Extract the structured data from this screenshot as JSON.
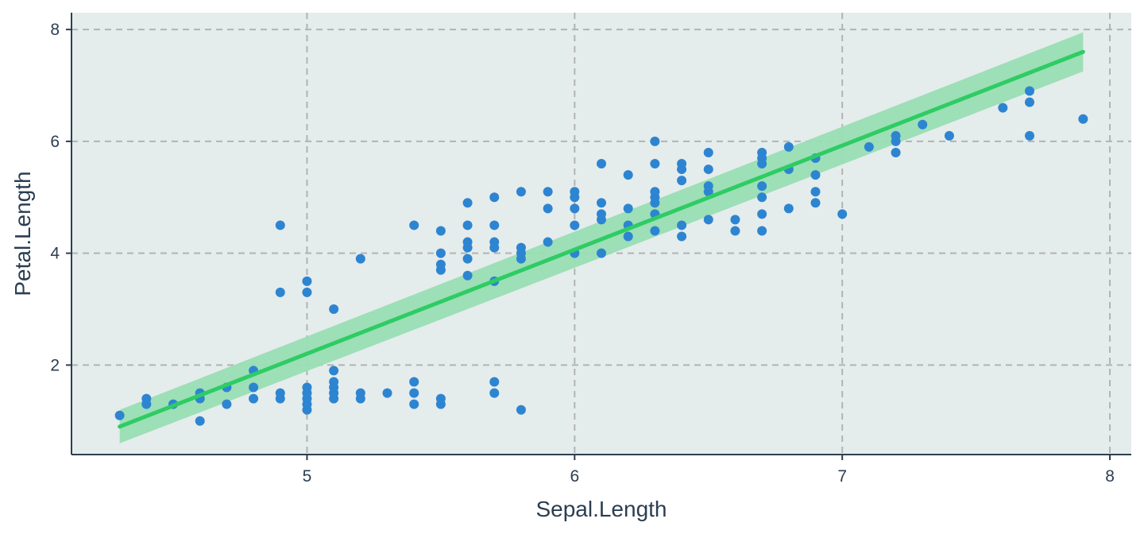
{
  "chart_data": {
    "type": "scatter",
    "title": "",
    "xlabel": "Sepal.Length",
    "ylabel": "Petal.Length",
    "xlim": [
      4.12,
      8.08
    ],
    "ylim": [
      0.4,
      8.3
    ],
    "xticks": [
      5,
      6,
      7,
      8
    ],
    "yticks": [
      2,
      4,
      6,
      8
    ],
    "xtick_labels": [
      "5",
      "6",
      "7",
      "8"
    ],
    "ytick_labels": [
      "2",
      "4",
      "6",
      "8"
    ],
    "grid": true,
    "legend": "none",
    "colors": {
      "panel_background": "#e5ecec",
      "points": "#2d85d1",
      "fit_line": "#2ecc64",
      "confidence_band": "#99deb4",
      "grid": "#b3b3b3",
      "axis": "#2c3e50"
    },
    "points": [
      [
        4.3,
        1.1
      ],
      [
        4.4,
        1.3
      ],
      [
        4.4,
        1.4
      ],
      [
        4.5,
        1.3
      ],
      [
        4.6,
        1.0
      ],
      [
        4.6,
        1.4
      ],
      [
        4.6,
        1.5
      ],
      [
        4.7,
        1.3
      ],
      [
        4.7,
        1.6
      ],
      [
        4.8,
        1.4
      ],
      [
        4.8,
        1.6
      ],
      [
        4.8,
        1.9
      ],
      [
        4.9,
        1.4
      ],
      [
        4.9,
        1.5
      ],
      [
        4.9,
        3.3
      ],
      [
        4.9,
        4.5
      ],
      [
        5.0,
        1.2
      ],
      [
        5.0,
        1.3
      ],
      [
        5.0,
        1.4
      ],
      [
        5.0,
        1.5
      ],
      [
        5.0,
        1.6
      ],
      [
        5.0,
        3.3
      ],
      [
        5.0,
        3.5
      ],
      [
        5.1,
        1.4
      ],
      [
        5.1,
        1.5
      ],
      [
        5.1,
        1.6
      ],
      [
        5.1,
        1.7
      ],
      [
        5.1,
        1.9
      ],
      [
        5.1,
        3.0
      ],
      [
        5.2,
        1.4
      ],
      [
        5.2,
        1.5
      ],
      [
        5.2,
        3.9
      ],
      [
        5.3,
        1.5
      ],
      [
        5.4,
        1.3
      ],
      [
        5.4,
        1.5
      ],
      [
        5.4,
        1.7
      ],
      [
        5.4,
        4.5
      ],
      [
        5.5,
        1.3
      ],
      [
        5.5,
        1.4
      ],
      [
        5.5,
        3.7
      ],
      [
        5.5,
        3.8
      ],
      [
        5.5,
        4.0
      ],
      [
        5.5,
        4.4
      ],
      [
        5.6,
        3.6
      ],
      [
        5.6,
        3.9
      ],
      [
        5.6,
        4.1
      ],
      [
        5.6,
        4.2
      ],
      [
        5.6,
        4.5
      ],
      [
        5.6,
        4.9
      ],
      [
        5.7,
        1.5
      ],
      [
        5.7,
        1.7
      ],
      [
        5.7,
        3.5
      ],
      [
        5.7,
        4.1
      ],
      [
        5.7,
        4.2
      ],
      [
        5.7,
        4.5
      ],
      [
        5.7,
        5.0
      ],
      [
        5.8,
        1.2
      ],
      [
        5.8,
        3.9
      ],
      [
        5.8,
        4.0
      ],
      [
        5.8,
        4.1
      ],
      [
        5.8,
        5.1
      ],
      [
        5.9,
        4.2
      ],
      [
        5.9,
        4.8
      ],
      [
        5.9,
        5.1
      ],
      [
        6.0,
        4.0
      ],
      [
        6.0,
        4.5
      ],
      [
        6.0,
        4.8
      ],
      [
        6.0,
        5.0
      ],
      [
        6.0,
        5.1
      ],
      [
        6.1,
        4.0
      ],
      [
        6.1,
        4.6
      ],
      [
        6.1,
        4.7
      ],
      [
        6.1,
        4.9
      ],
      [
        6.1,
        5.6
      ],
      [
        6.2,
        4.3
      ],
      [
        6.2,
        4.5
      ],
      [
        6.2,
        4.8
      ],
      [
        6.2,
        5.4
      ],
      [
        6.3,
        4.4
      ],
      [
        6.3,
        4.7
      ],
      [
        6.3,
        4.9
      ],
      [
        6.3,
        5.0
      ],
      [
        6.3,
        5.1
      ],
      [
        6.3,
        5.6
      ],
      [
        6.3,
        6.0
      ],
      [
        6.4,
        4.3
      ],
      [
        6.4,
        4.5
      ],
      [
        6.4,
        5.3
      ],
      [
        6.4,
        5.5
      ],
      [
        6.4,
        5.6
      ],
      [
        6.5,
        4.6
      ],
      [
        6.5,
        5.1
      ],
      [
        6.5,
        5.2
      ],
      [
        6.5,
        5.5
      ],
      [
        6.5,
        5.8
      ],
      [
        6.6,
        4.4
      ],
      [
        6.6,
        4.6
      ],
      [
        6.7,
        4.4
      ],
      [
        6.7,
        4.7
      ],
      [
        6.7,
        5.0
      ],
      [
        6.7,
        5.2
      ],
      [
        6.7,
        5.6
      ],
      [
        6.7,
        5.7
      ],
      [
        6.7,
        5.8
      ],
      [
        6.8,
        4.8
      ],
      [
        6.8,
        5.5
      ],
      [
        6.8,
        5.9
      ],
      [
        6.9,
        4.9
      ],
      [
        6.9,
        5.1
      ],
      [
        6.9,
        5.4
      ],
      [
        6.9,
        5.7
      ],
      [
        7.0,
        4.7
      ],
      [
        7.1,
        5.9
      ],
      [
        7.2,
        5.8
      ],
      [
        7.2,
        6.0
      ],
      [
        7.2,
        6.1
      ],
      [
        7.3,
        6.3
      ],
      [
        7.4,
        6.1
      ],
      [
        7.6,
        6.6
      ],
      [
        7.7,
        6.1
      ],
      [
        7.7,
        6.7
      ],
      [
        7.7,
        6.9
      ],
      [
        7.9,
        6.4
      ]
    ],
    "fit": {
      "method": "lm",
      "x_start": 4.3,
      "x_end": 7.9,
      "y_start": 0.9,
      "y_end": 7.6
    },
    "confidence_band": {
      "x": [
        4.3,
        7.9
      ],
      "lower": [
        0.6,
        7.25
      ],
      "upper": [
        1.2,
        7.95
      ]
    }
  }
}
